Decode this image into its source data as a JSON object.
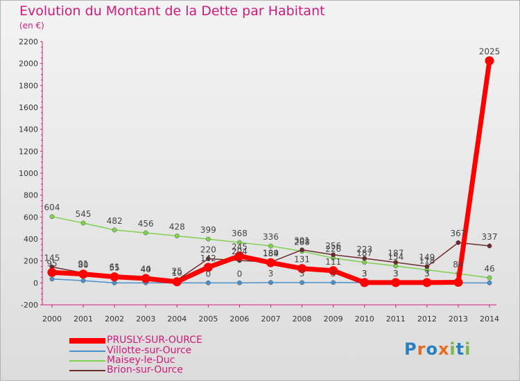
{
  "title": "Evolution du Montant de la Dette par Habitant",
  "subtitle": "(en €)",
  "logo_text": "Proxiti",
  "chart_data": {
    "type": "line",
    "x": [
      "2000",
      "2001",
      "2002",
      "2003",
      "2004",
      "2005",
      "2006",
      "2007",
      "2008",
      "2009",
      "2010",
      "2011",
      "2012",
      "2013",
      "2014"
    ],
    "ylim": [
      -200,
      2200
    ],
    "yticks": [
      "-200",
      "0",
      "200",
      "400",
      "600",
      "800",
      "1000",
      "1200",
      "1400",
      "1600",
      "1800",
      "2000",
      "2200"
    ],
    "grid": false,
    "legend_position": "bottom-left",
    "series": [
      {
        "name": "PRUSLY-SUR-OURCE",
        "color": "#ff0000",
        "values": [
          95,
          80,
          55,
          40,
          10,
          142,
          245,
          184,
          131,
          111,
          3,
          3,
          3,
          5,
          2025
        ],
        "labels": [
          "95",
          "80",
          "55",
          "40",
          "10",
          "142",
          "245",
          "184",
          "131",
          "111",
          "3",
          "3",
          "3",
          "",
          "2025"
        ]
      },
      {
        "name": "Villotte-sur-Ource",
        "color": "#4a90c8",
        "values": [
          35,
          20,
          0,
          0,
          0,
          0,
          0,
          3,
          3,
          3,
          3,
          3,
          3,
          0,
          0
        ],
        "labels": [
          "",
          "",
          "",
          "",
          "",
          "0",
          "0",
          "3",
          "3",
          "3",
          "3",
          "3",
          "3",
          "",
          ""
        ]
      },
      {
        "name": "Maisey-le-Duc",
        "color": "#80d050",
        "values": [
          604,
          545,
          482,
          456,
          428,
          399,
          368,
          336,
          288,
          226,
          187,
          154,
          118,
          84,
          46
        ],
        "labels": [
          "604",
          "545",
          "482",
          "456",
          "428",
          "399",
          "368",
          "336",
          "288",
          "226",
          "187",
          "154",
          "118",
          "84",
          "46"
        ]
      },
      {
        "name": "Brion-sur-Ource",
        "color": "#6b2b2b",
        "values": [
          145,
          91,
          61,
          44,
          25,
          220,
          204,
          189,
          301,
          256,
          223,
          187,
          149,
          367,
          337
        ],
        "labels": [
          "145",
          "91",
          "61",
          "44",
          "25",
          "220",
          "204",
          "189",
          "301",
          "256",
          "223",
          "187",
          "149",
          "367",
          "337"
        ]
      }
    ]
  }
}
